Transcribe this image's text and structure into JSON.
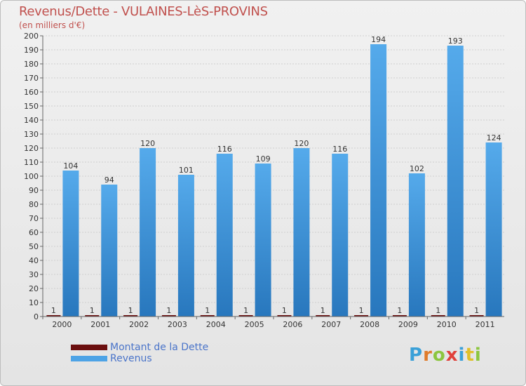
{
  "title": "Revenus/Dette - VULAINES-LèS-PROVINS",
  "unit_label": "(en milliers d'€)",
  "colors": {
    "dette": "#6b0f0f",
    "revenus": "#4da3e6",
    "revenus_dark": "#2a7cc0",
    "title": "#c0504d"
  },
  "legend": {
    "dette": "Montant de la Dette",
    "revenus": "Revenus"
  },
  "logo": {
    "text": "Proxiti"
  },
  "chart_data": {
    "type": "bar",
    "title": "Revenus/Dette - VULAINES-LèS-PROVINS",
    "ylabel": "(en milliers d'€)",
    "xlabel": "",
    "ylim": [
      0,
      200
    ],
    "ytick_step": 10,
    "grid": true,
    "categories": [
      "2000",
      "2001",
      "2002",
      "2003",
      "2004",
      "2005",
      "2006",
      "2007",
      "2008",
      "2009",
      "2010",
      "2011"
    ],
    "series": [
      {
        "name": "Montant de la Dette",
        "values": [
          1,
          1,
          1,
          1,
          1,
          1,
          1,
          1,
          1,
          1,
          1,
          1
        ]
      },
      {
        "name": "Revenus",
        "values": [
          104,
          94,
          120,
          101,
          116,
          109,
          120,
          116,
          194,
          102,
          193,
          124
        ]
      }
    ]
  }
}
